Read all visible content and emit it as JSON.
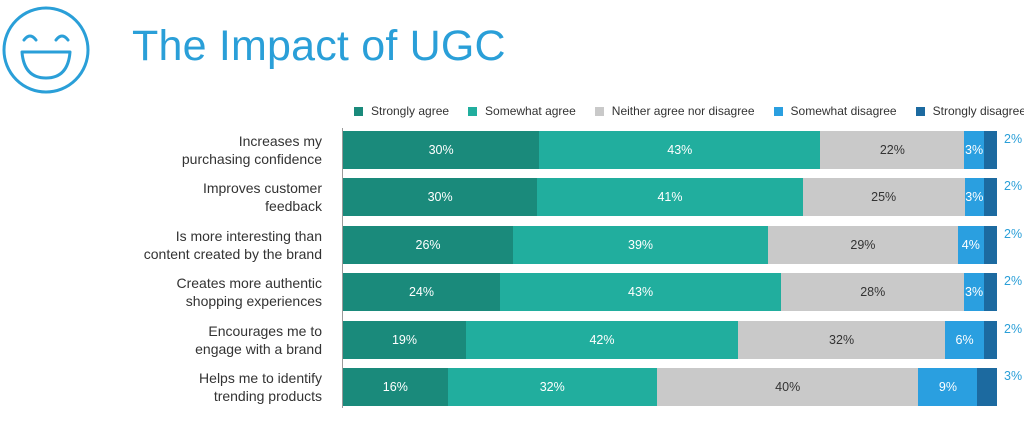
{
  "page": {
    "title": "The Impact of UGC",
    "icon": "smiley-face-icon"
  },
  "colors": {
    "strongly_agree": "#1a8a7b",
    "somewhat_agree": "#21ae9e",
    "neither": "#c9c9c9",
    "somewhat_disagree": "#2a9fe0",
    "strongly_disagree": "#1c6aa0",
    "title": "#2a9fd8"
  },
  "chart_data": {
    "type": "bar",
    "orientation": "horizontal",
    "stacked": true,
    "normalized_percent": true,
    "title": "The Impact of UGC",
    "legend": [
      "Strongly agree",
      "Somewhat agree",
      "Neither agree nor disagree",
      "Somewhat disagree",
      "Strongly disagree"
    ],
    "legend_position": "top",
    "categories": [
      [
        "Increases my",
        "purchasing confidence"
      ],
      [
        "Improves customer",
        "feedback"
      ],
      [
        "Is more interesting than",
        "content created by the brand"
      ],
      [
        "Creates more authentic",
        "shopping experiences"
      ],
      [
        "Encourages me to",
        "engage with a brand"
      ],
      [
        "Helps me to identify",
        "trending products"
      ]
    ],
    "series": [
      {
        "name": "Strongly agree",
        "values": [
          30,
          30,
          26,
          24,
          19,
          16
        ]
      },
      {
        "name": "Somewhat agree",
        "values": [
          43,
          41,
          39,
          43,
          42,
          32
        ]
      },
      {
        "name": "Neither agree nor disagree",
        "values": [
          22,
          25,
          29,
          28,
          32,
          40
        ]
      },
      {
        "name": "Somewhat disagree",
        "values": [
          3,
          3,
          4,
          3,
          6,
          9
        ]
      },
      {
        "name": "Strongly disagree",
        "values": [
          2,
          2,
          2,
          2,
          2,
          3
        ]
      }
    ]
  }
}
